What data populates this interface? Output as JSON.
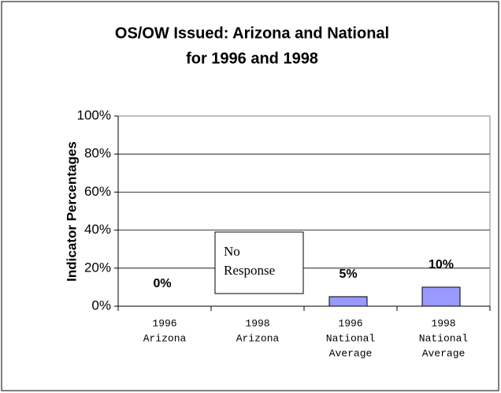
{
  "chart_data": {
    "type": "bar",
    "title": [
      "OS/OW Issued: Arizona and National",
      "for 1996 and 1998"
    ],
    "y_label": "Indicator Percentages",
    "categories": [
      [
        "1996",
        "Arizona"
      ],
      [
        "1998",
        "Arizona"
      ],
      [
        "1996",
        "National",
        "Average"
      ],
      [
        "1998",
        "National",
        "Average"
      ]
    ],
    "values": [
      0,
      null,
      5,
      10
    ],
    "value_labels": [
      "0%",
      null,
      "5%",
      "10%"
    ],
    "color": "#9999ff",
    "annotation": {
      "category": 1,
      "lines": [
        "No",
        "Response"
      ]
    },
    "ylim": [
      0,
      100
    ],
    "yticks": [
      {
        "value": 0,
        "label": "0%"
      },
      {
        "value": 20,
        "label": "20%"
      },
      {
        "value": 40,
        "label": "40%"
      },
      {
        "value": 60,
        "label": "60%"
      },
      {
        "value": 80,
        "label": "80%"
      },
      {
        "value": 100,
        "label": "100%"
      }
    ],
    "grid": true
  }
}
